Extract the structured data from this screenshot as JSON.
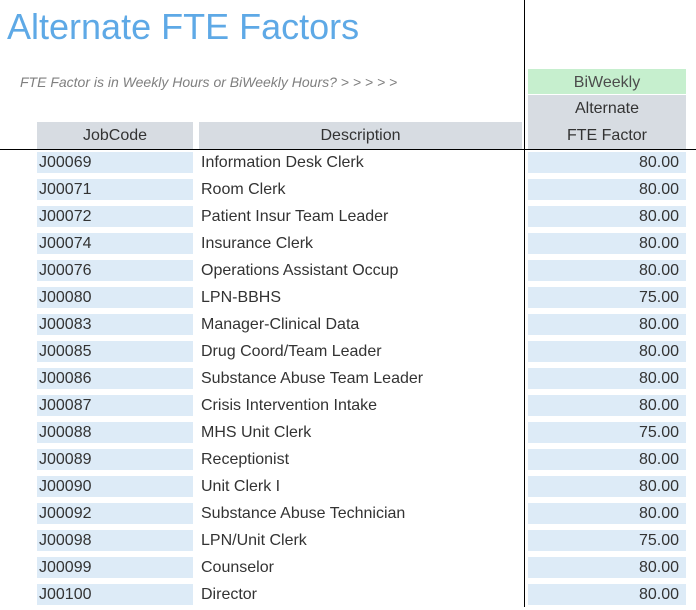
{
  "title": "Alternate FTE Factors",
  "question": "FTE Factor is in Weekly Hours or BiWeekly Hours? > > > > >",
  "mode_value": "BiWeekly",
  "headers": {
    "jobcode": "JobCode",
    "description": "Description",
    "fte_line1": "Alternate",
    "fte_line2": "FTE Factor"
  },
  "rows": [
    {
      "code": "J00069",
      "desc": "Information Desk Clerk",
      "fte": "80.00"
    },
    {
      "code": "J00071",
      "desc": "Room Clerk",
      "fte": "80.00"
    },
    {
      "code": "J00072",
      "desc": "Patient Insur Team Leader",
      "fte": "80.00"
    },
    {
      "code": "J00074",
      "desc": "Insurance Clerk",
      "fte": "80.00"
    },
    {
      "code": "J00076",
      "desc": "Operations Assistant Occup",
      "fte": "80.00"
    },
    {
      "code": "J00080",
      "desc": "LPN-BBHS",
      "fte": "75.00"
    },
    {
      "code": "J00083",
      "desc": "Manager-Clinical Data",
      "fte": "80.00"
    },
    {
      "code": "J00085",
      "desc": "Drug Coord/Team Leader",
      "fte": "80.00"
    },
    {
      "code": "J00086",
      "desc": "Substance Abuse Team Leader",
      "fte": "80.00"
    },
    {
      "code": "J00087",
      "desc": "Crisis Intervention Intake",
      "fte": "80.00"
    },
    {
      "code": "J00088",
      "desc": "MHS Unit Clerk",
      "fte": "75.00"
    },
    {
      "code": "J00089",
      "desc": "Receptionist",
      "fte": "80.00"
    },
    {
      "code": "J00090",
      "desc": "Unit Clerk I",
      "fte": "80.00"
    },
    {
      "code": "J00092",
      "desc": "Substance Abuse Technician",
      "fte": "80.00"
    },
    {
      "code": "J00098",
      "desc": "LPN/Unit Clerk",
      "fte": "75.00"
    },
    {
      "code": "J00099",
      "desc": "Counselor",
      "fte": "80.00"
    },
    {
      "code": "J00100",
      "desc": "Director",
      "fte": "80.00"
    }
  ]
}
